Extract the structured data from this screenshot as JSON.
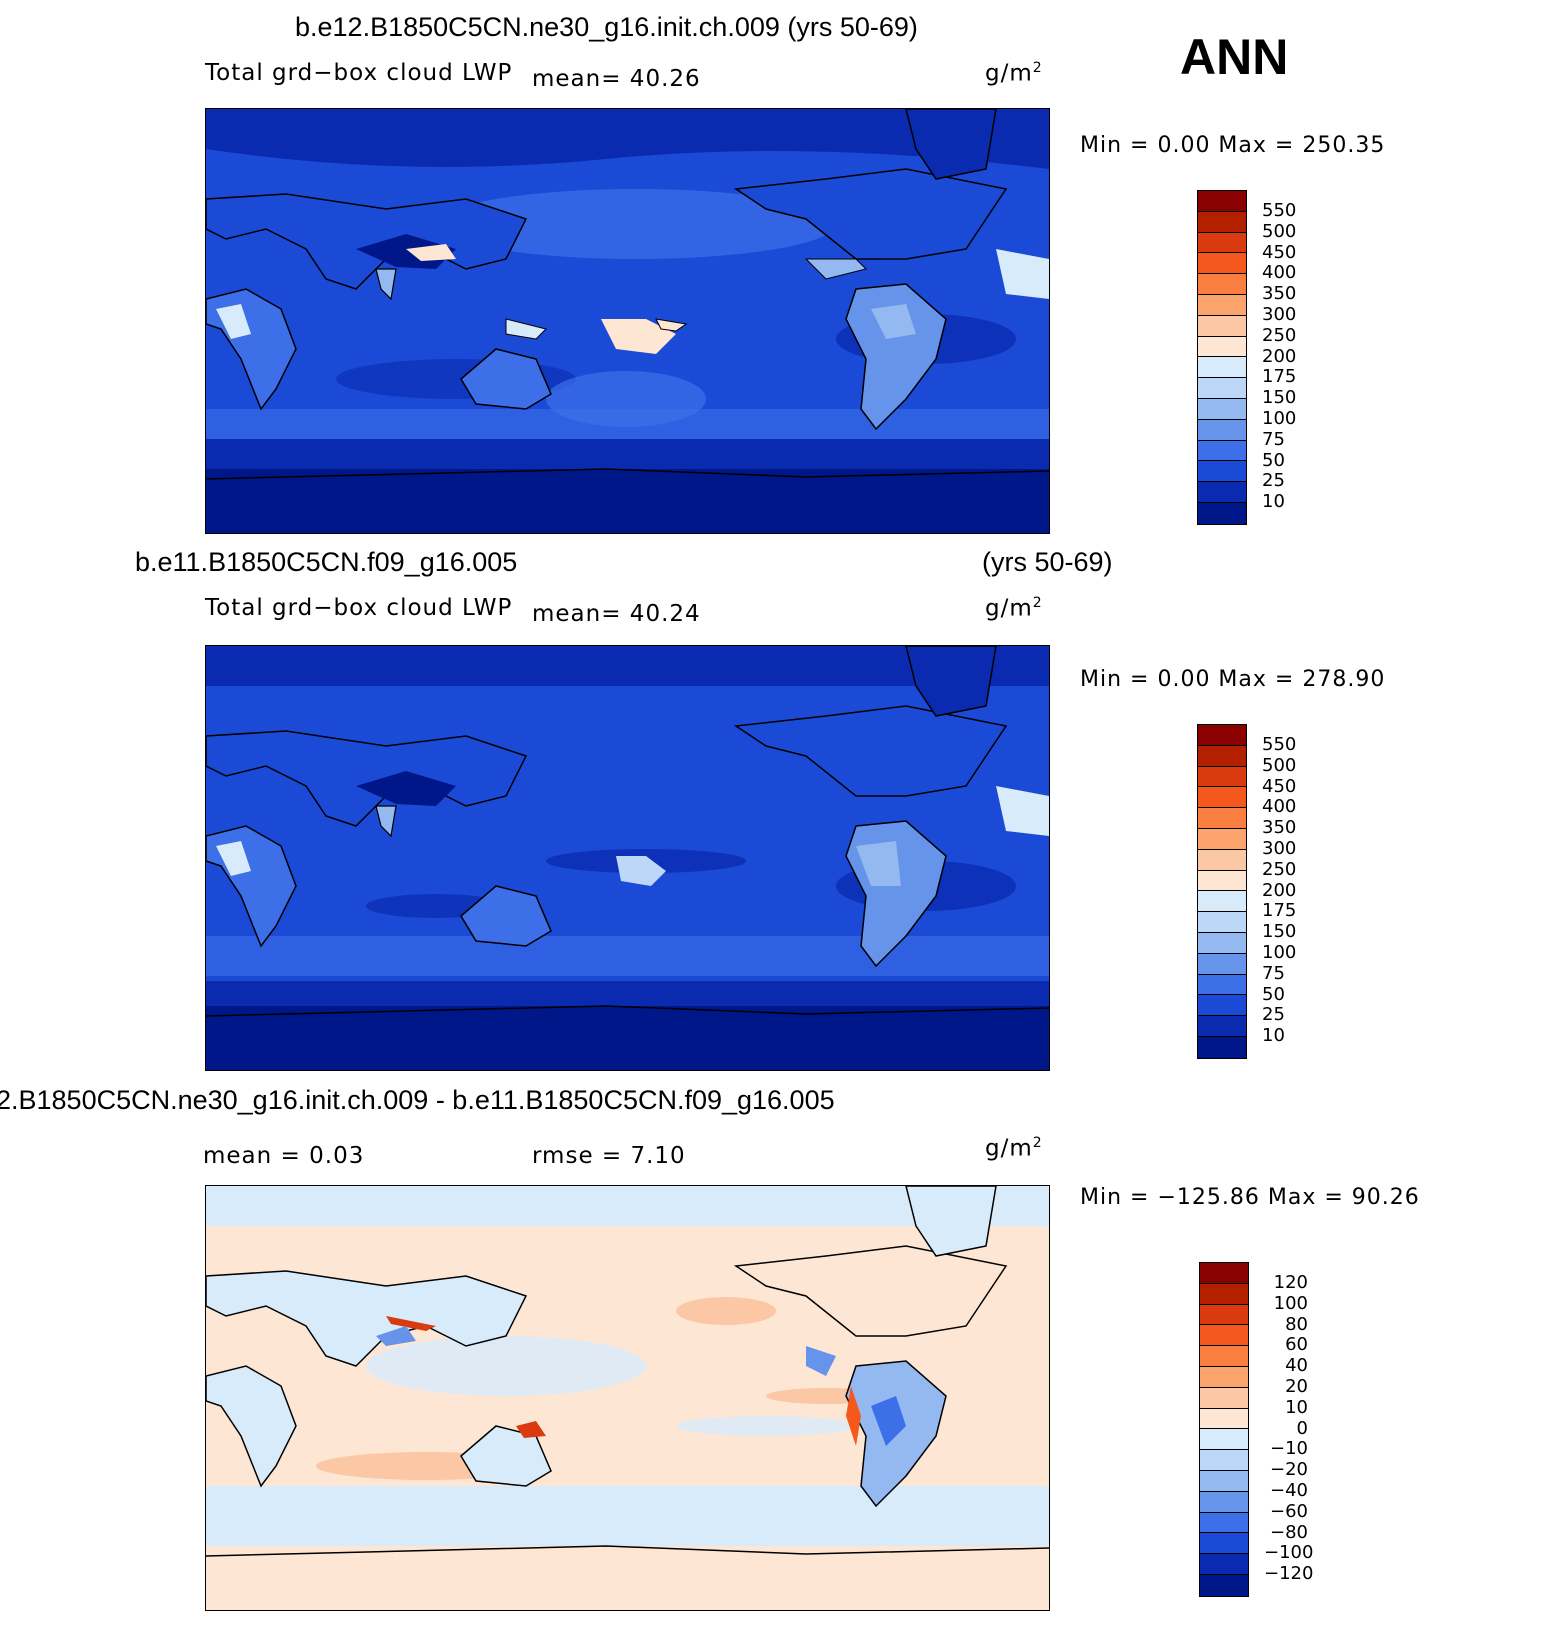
{
  "season": "ANN",
  "panels": [
    {
      "title": "b.e12.B1850C5CN.ne30_g16.init.ch.009 (yrs 50-69)",
      "variable": "Total grd−box cloud LWP",
      "stat1": "mean=   40.26",
      "units": "g/m",
      "units_exp": "2",
      "minmax": "Min  =     0.00  Max  =  250.35",
      "colorbar_labels": [
        "550",
        "500",
        "450",
        "400",
        "350",
        "300",
        "250",
        "200",
        "175",
        "150",
        "100",
        "75",
        "50",
        "25",
        "10"
      ],
      "colors": [
        "#8b0000",
        "#b22000",
        "#d93a10",
        "#f4581c",
        "#fa7e40",
        "#fba46c",
        "#fcc7a4",
        "#fde7d4",
        "#d8ebfb",
        "#bdd7f8",
        "#94b8f0",
        "#6594ea",
        "#3d6fe8",
        "#1b4ad6",
        "#0a2bb0",
        "#001789"
      ]
    },
    {
      "title": "b.e11.B1850C5CN.f09_g16.005",
      "title_right": "(yrs 50-69)",
      "variable": "Total grd−box cloud LWP",
      "stat1": "mean=   40.24",
      "units": "g/m",
      "units_exp": "2",
      "minmax": "Min  =     0.00  Max  =  278.90",
      "colorbar_labels": [
        "550",
        "500",
        "450",
        "400",
        "350",
        "300",
        "250",
        "200",
        "175",
        "150",
        "100",
        "75",
        "50",
        "25",
        "10"
      ],
      "colors": [
        "#8b0000",
        "#b22000",
        "#d93a10",
        "#f4581c",
        "#fa7e40",
        "#fba46c",
        "#fcc7a4",
        "#fde7d4",
        "#d8ebfb",
        "#bdd7f8",
        "#94b8f0",
        "#6594ea",
        "#3d6fe8",
        "#1b4ad6",
        "#0a2bb0",
        "#001789"
      ]
    },
    {
      "title": "2.B1850C5CN.ne30_g16.init.ch.009 - b.e11.B1850C5CN.f09_g16.005",
      "stat1": "mean  =     0.03",
      "stat2": "rmse  =     7.10",
      "units": "g/m",
      "units_exp": "2",
      "minmax": "Min  =  −125.86  Max  =    90.26",
      "colorbar_labels": [
        "120",
        "100",
        "80",
        "60",
        "40",
        "20",
        "10",
        "0",
        "−10",
        "−20",
        "−40",
        "−60",
        "−80",
        "−100",
        "−120"
      ],
      "colors": [
        "#8b0000",
        "#b22000",
        "#d93a10",
        "#f4581c",
        "#fa7e40",
        "#fba46c",
        "#fcc7a4",
        "#fde7d4",
        "#d8ebfb",
        "#bdd7f8",
        "#94b8f0",
        "#6594ea",
        "#3d6fe8",
        "#1b4ad6",
        "#0a2bb0",
        "#001789"
      ]
    }
  ]
}
